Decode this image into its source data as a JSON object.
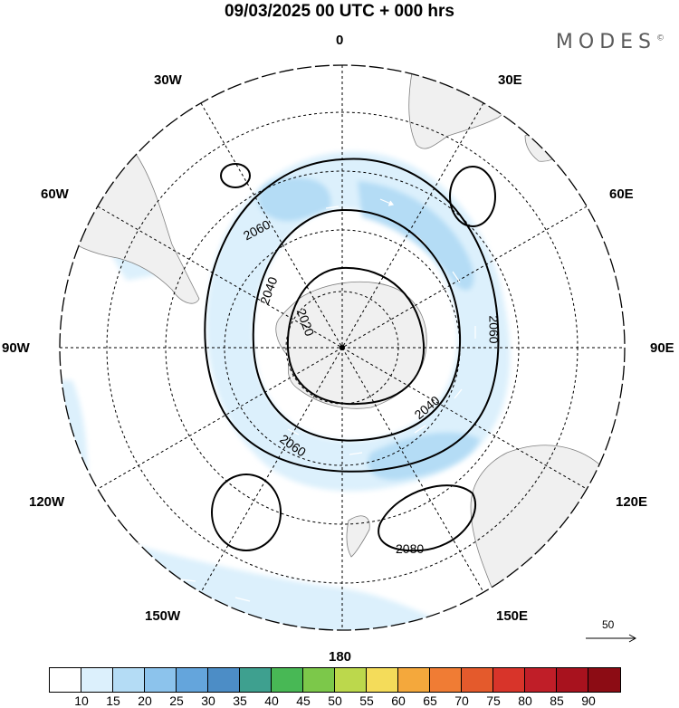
{
  "header": {
    "title": "09/03/2025  00 UTC  + 000 hrs",
    "brand": "MODES",
    "brand_mark": "©"
  },
  "meridian_labels": {
    "lon_0": "0",
    "lon_30w": "30W",
    "lon_30e": "30E",
    "lon_60w": "60W",
    "lon_60e": "60E",
    "lon_90w": "90W",
    "lon_90e": "90E",
    "lon_120w": "120W",
    "lon_120e": "120E",
    "lon_150w": "150W",
    "lon_150e": "150E",
    "lon_180": "180"
  },
  "contours": {
    "label_2020": "2020",
    "label_2040_a": "2040",
    "label_2040_b": "2040",
    "label_2060_a": "2060",
    "label_2060_b": "2060",
    "label_2060_c": "2060",
    "label_2080": "2080"
  },
  "reference_vector": {
    "value": "50"
  },
  "colorbar": {
    "colors": [
      "#ffffff",
      "#dcf0fc",
      "#b4dcf5",
      "#8cc3ec",
      "#64a5dc",
      "#4c8dc6",
      "#3ea08f",
      "#48b855",
      "#7cc84a",
      "#bcd84c",
      "#f4dc5a",
      "#f4a83c",
      "#f07c34",
      "#e45a2c",
      "#d8342a",
      "#c01e28",
      "#a8121e",
      "#8c0c14"
    ],
    "ticks": [
      "10",
      "15",
      "20",
      "25",
      "30",
      "35",
      "40",
      "45",
      "50",
      "55",
      "60",
      "65",
      "70",
      "75",
      "80",
      "85",
      "90"
    ]
  }
}
